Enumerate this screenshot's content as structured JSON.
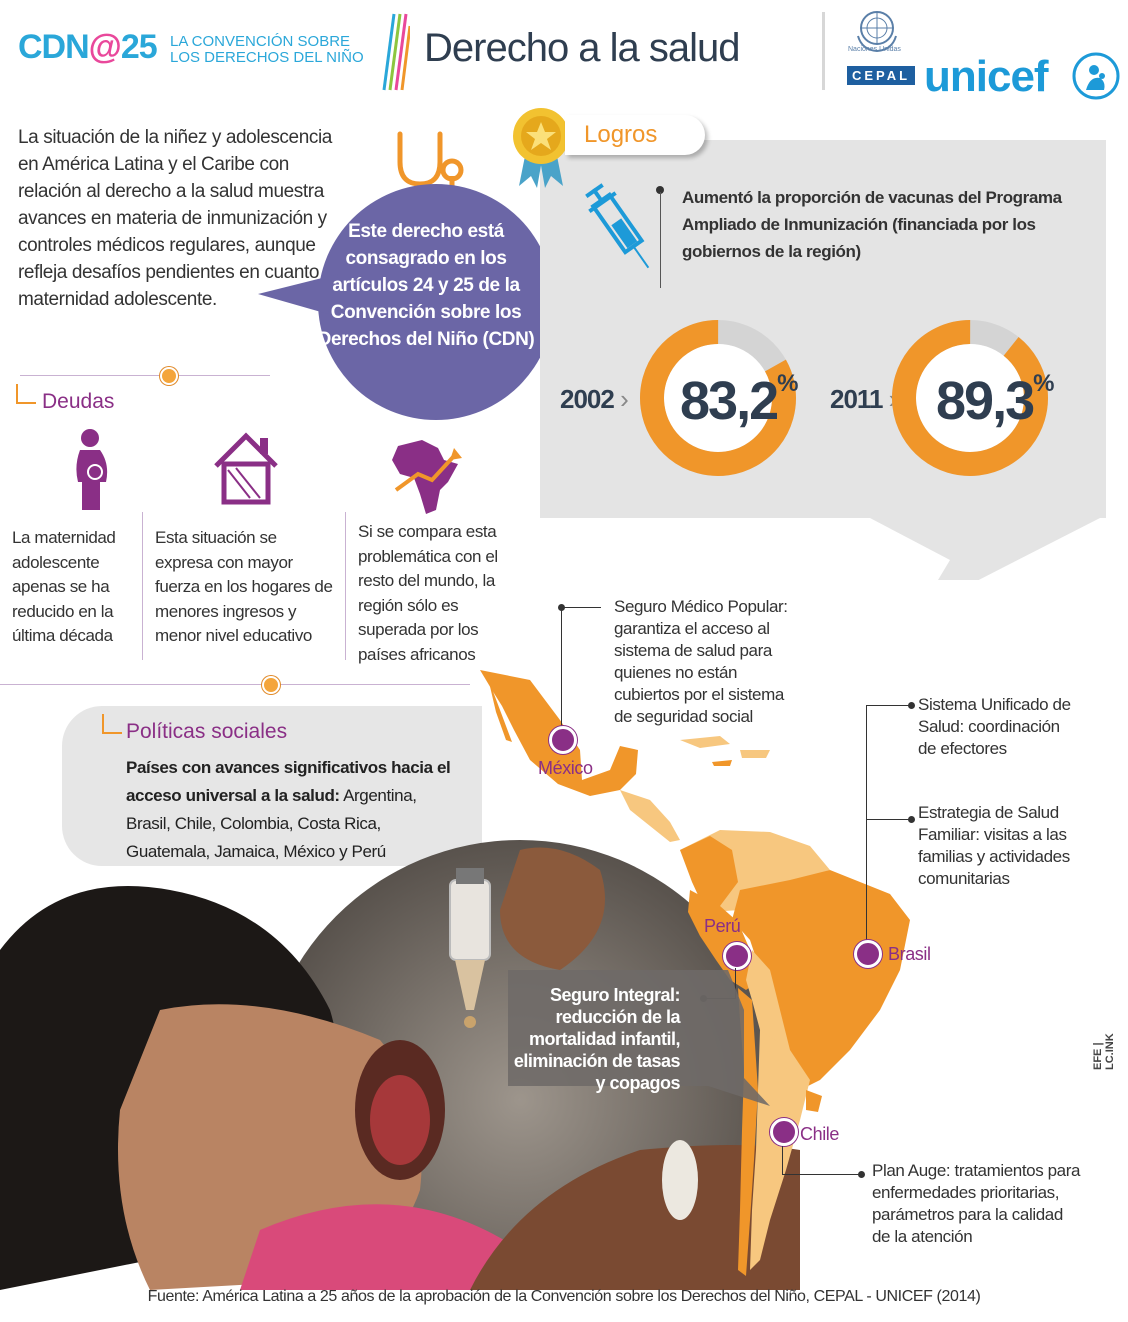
{
  "header": {
    "logo_main": "CDN",
    "logo_at": "@",
    "logo_num": "25",
    "logo_sub_line1": "LA CONVENCIÓN SOBRE",
    "logo_sub_line2": "LOS DERECHOS DEL NIÑO",
    "title": "Derecho a la salud",
    "un_text": "Naciones Unidas",
    "cepal": "CEPAL",
    "unicef": "unicef"
  },
  "intro": {
    "text": "La situación de la niñez y adolescencia en América Latina y el Caribe con relación al derecho a la salud muestra avances en materia de inmunización y controles médicos regulares, aunque refleja desafíos pendientes en cuanto a maternidad adolescente.",
    "bubble_text": "Este derecho está consagrado en los artículos 24 y 25 de la Convención sobre los Derechos del Niño (CDN)"
  },
  "deudas": {
    "title": "Deudas",
    "items": [
      {
        "icon": "pregnant-woman-icon",
        "text": "La maternidad adolescente apenas se ha reducido en la última década"
      },
      {
        "icon": "house-icon",
        "text": "Esta situación se expresa con mayor fuerza en los hogares de menores ingresos  y menor nivel educativo"
      },
      {
        "icon": "africa-map-icon",
        "text": "Si se compara esta problemática con el resto del mundo, la región sólo es superada por los países africanos"
      }
    ]
  },
  "logros": {
    "title": "Logros",
    "vaccine_text": "Aumentó la proporción de vacunas del Programa Ampliado de Inmunización (financiada por los gobiernos de la región)",
    "stats": [
      {
        "year": "2002",
        "value": "83,2",
        "unit": "%",
        "fraction": 0.832
      },
      {
        "year": "2011",
        "value": "89,3",
        "unit": "%",
        "fraction": 0.893
      }
    ]
  },
  "politicas": {
    "title": "Políticas sociales",
    "lead": "Países con avances significativos hacia el acceso universal a la salud:",
    "countries": " Argentina, Brasil, Chile, Colombia, Costa Rica, Guatemala, Jamaica, México y Perú"
  },
  "map": {
    "mexico": {
      "label": "México",
      "callout": "Seguro Médico Popular: garantiza el acceso al sistema de salud para quienes no están cubiertos por el sistema de seguridad social"
    },
    "brasil": {
      "label": "Brasil",
      "callout1": "Sistema Unificado de Salud: coordinación de efectores",
      "callout2": "Estrategia de Salud Familiar: visitas a las familias y actividades comunitarias"
    },
    "peru": {
      "label": "Perú",
      "callout": "Seguro Integral: reducción de la mortalidad infantil, eliminación de tasas y copagos"
    },
    "chile": {
      "label": "Chile",
      "callout": "Plan Auge: tratamientos para enfermedades prioritarias, parámetros para la calidad de la atención"
    }
  },
  "credit": "EFE | LC.INK",
  "source": "Fuente: América Latina a 25 años de la aprobación de la Convención sobre los Derechos del Niño,  CEPAL - UNICEF (2014)",
  "colors": {
    "orange": "#f0962a",
    "light_orange": "#f7c77f",
    "purple": "#8a2f86",
    "bubble": "#6b66a6",
    "dark": "#2f3e50"
  }
}
